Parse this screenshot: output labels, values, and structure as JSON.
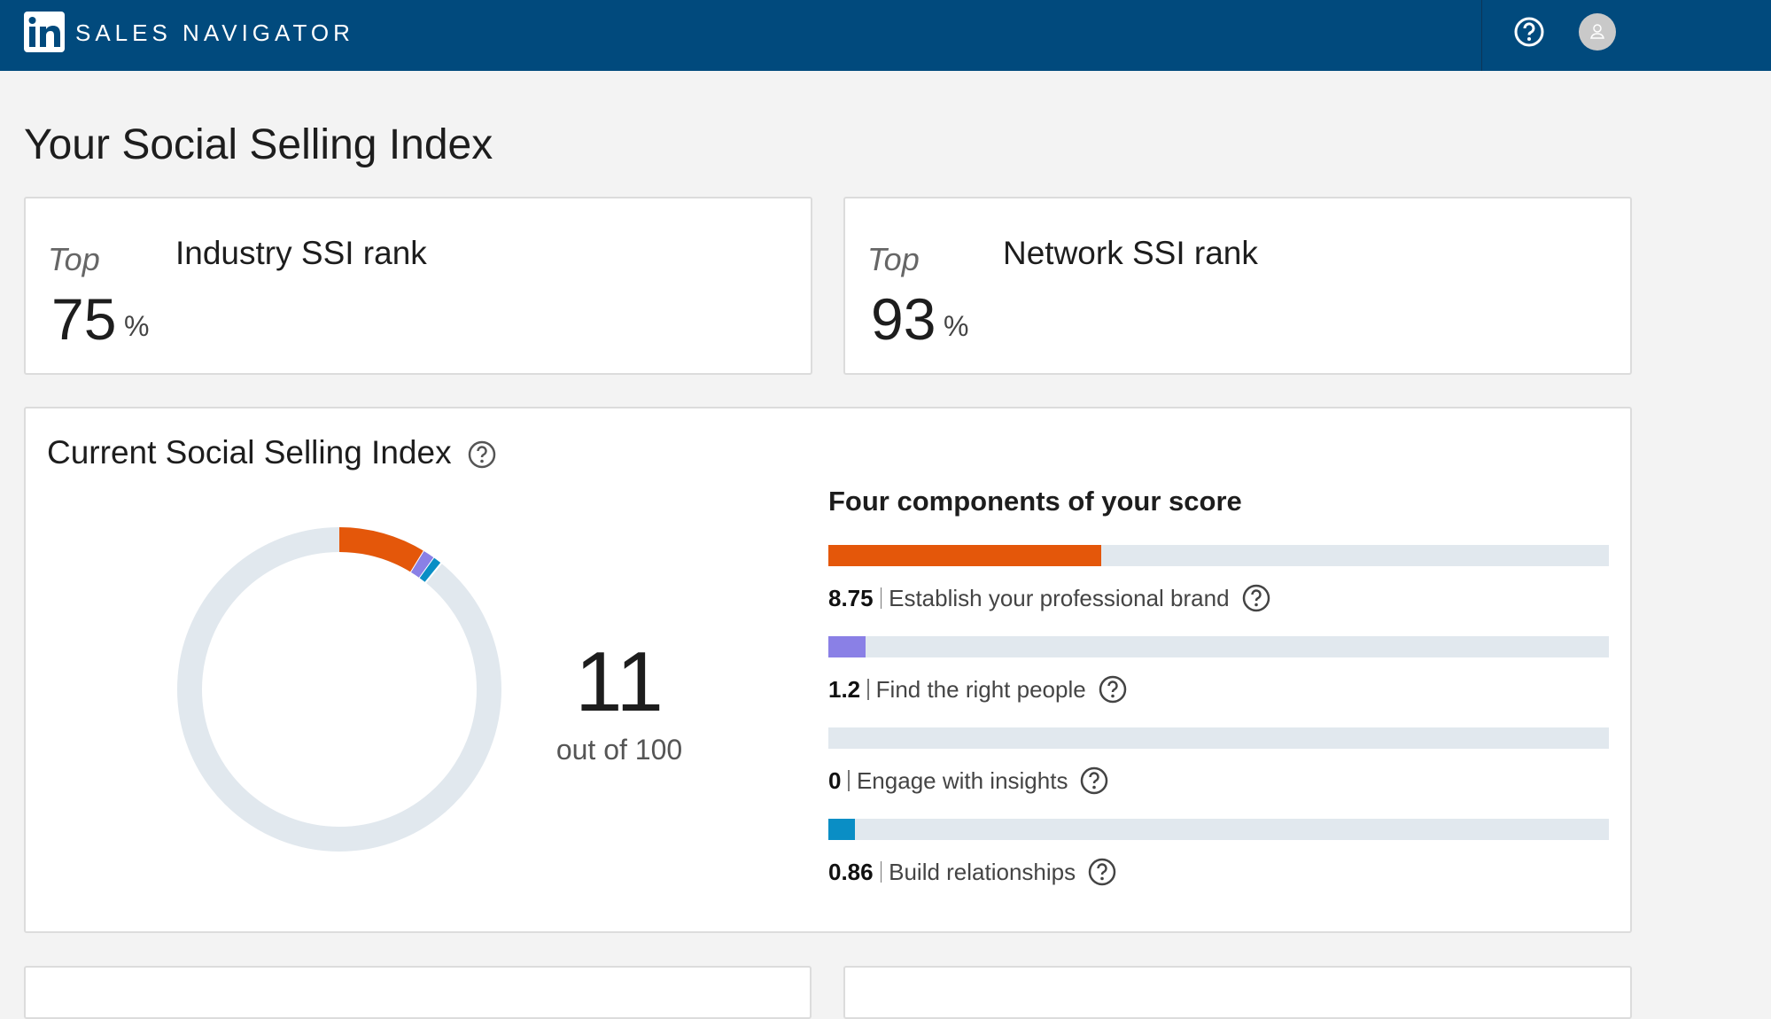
{
  "header": {
    "brand": "SALES NAVIGATOR"
  },
  "page_title": "Your Social Selling Index",
  "rank_cards": [
    {
      "prefix": "Top",
      "value": 75,
      "unit": "%",
      "label": "Industry SSI rank"
    },
    {
      "prefix": "Top",
      "value": 93,
      "unit": "%",
      "label": "Network SSI rank"
    }
  ],
  "ssi": {
    "title": "Current Social Selling Index",
    "score": 11,
    "max": 100,
    "max_label": "out of 100",
    "components_title": "Four components of your score",
    "components": [
      {
        "name": "Establish your professional brand",
        "value": 8.75,
        "color": "#e4570a"
      },
      {
        "name": "Find the right people",
        "value": 1.2,
        "color": "#8a80e6"
      },
      {
        "name": "Engage with insights",
        "value": 0,
        "color": "#3fb6a8"
      },
      {
        "name": "Build relationships",
        "value": 0.86,
        "color": "#0a8ec5"
      }
    ]
  }
}
